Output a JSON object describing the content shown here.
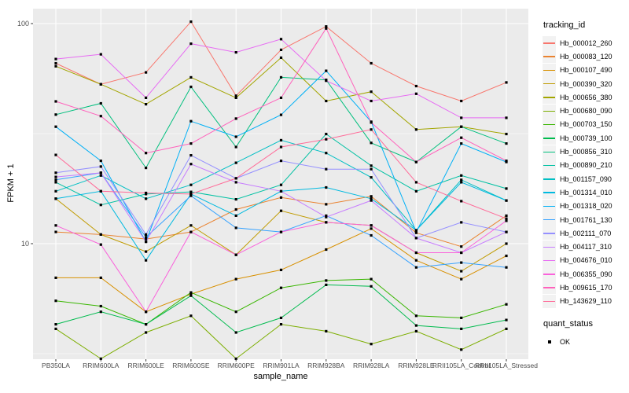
{
  "chart_data": {
    "type": "line",
    "title": "",
    "xlabel": "sample_name",
    "ylabel": "FPKM + 1",
    "y_scale": "log10",
    "y_ticks": [
      10,
      100
    ],
    "y_minor_ticks": [
      3.162,
      31.62
    ],
    "grid": true,
    "legend_position": "right",
    "panel_bg": "#EBEBEB",
    "grid_color": "#FFFFFF",
    "tick_label_color": "#4D4D4D",
    "axis_title_color": "#000000",
    "point": {
      "shape": "square",
      "color": "#000000",
      "size": 3.2
    },
    "legend_title": "tracking_id",
    "shape_legend": {
      "title": "quant_status",
      "items": [
        {
          "label": "OK"
        }
      ]
    },
    "categories": [
      "PB350LA",
      "RRIM600LA",
      "RRIM600LE",
      "RRIM600SE",
      "RRIM600PE",
      "RRIM901LA",
      "RRIM928BA",
      "RRIM928LA",
      "RRIM928LE",
      "RRII105LA_Control",
      "RRII105LA_Stressed"
    ],
    "series": [
      {
        "name": "Hb_000012_260",
        "color": "#F8766D",
        "values": [
          66,
          53,
          60,
          102,
          47,
          76,
          97,
          66,
          52,
          44.5,
          54
        ]
      },
      {
        "name": "Hb_000083_120",
        "color": "#EA8331",
        "values": [
          11.3,
          11.0,
          10.5,
          11.3,
          14.3,
          16.2,
          15.1,
          16.4,
          11.2,
          9.7,
          13.4
        ]
      },
      {
        "name": "Hb_000107_490",
        "color": "#D89000",
        "values": [
          7.0,
          7.0,
          4.9,
          5.9,
          6.9,
          7.6,
          9.4,
          11.7,
          8.4,
          6.9,
          8.8
        ]
      },
      {
        "name": "Hb_000390_320",
        "color": "#C09B00",
        "values": [
          16.0,
          11.0,
          9.2,
          12.1,
          8.9,
          14.1,
          12.5,
          12.1,
          9.1,
          7.5,
          10.0
        ]
      },
      {
        "name": "Hb_000656_380",
        "color": "#A3A500",
        "values": [
          64,
          53,
          43,
          57,
          46,
          70,
          44.5,
          49,
          33,
          34,
          31.5
        ]
      },
      {
        "name": "Hb_000680_090",
        "color": "#7CAE00",
        "values": [
          4.1,
          3.0,
          3.95,
          4.7,
          3.0,
          4.3,
          4.0,
          3.5,
          4.0,
          3.3,
          4.1
        ]
      },
      {
        "name": "Hb_000703_150",
        "color": "#39B600",
        "values": [
          5.5,
          5.2,
          4.3,
          6.0,
          4.9,
          6.3,
          6.8,
          6.9,
          4.7,
          4.6,
          5.3
        ]
      },
      {
        "name": "Hb_000739_100",
        "color": "#00BB4E",
        "values": [
          4.3,
          4.9,
          4.3,
          5.8,
          3.95,
          4.6,
          6.5,
          6.4,
          4.25,
          4.1,
          4.5
        ]
      },
      {
        "name": "Hb_000856_310",
        "color": "#00BF7D",
        "values": [
          38.6,
          43.4,
          22.1,
          51.6,
          27.5,
          57,
          55.5,
          28.7,
          23.5,
          34,
          28.5
        ]
      },
      {
        "name": "Hb_000890_210",
        "color": "#00C1A3",
        "values": [
          19.0,
          15.0,
          16.8,
          17.2,
          15.9,
          18.5,
          31.5,
          22.6,
          17.3,
          20.4,
          17.8
        ]
      },
      {
        "name": "Hb_001157_090",
        "color": "#00BFC4",
        "values": [
          17.3,
          20.4,
          16.0,
          18.5,
          23.3,
          29.5,
          25.8,
          20.0,
          11.5,
          19.5,
          15.7
        ]
      },
      {
        "name": "Hb_001314_010",
        "color": "#00BAE0",
        "values": [
          16.0,
          17.3,
          8.4,
          16.8,
          13.4,
          17.3,
          18.0,
          16.0,
          11.5,
          19.0,
          15.7
        ]
      },
      {
        "name": "Hb_001318_020",
        "color": "#00B0F6",
        "values": [
          34,
          23.8,
          10.2,
          36,
          30.6,
          38.5,
          61,
          35.8,
          11.3,
          28.5,
          23.5
        ]
      },
      {
        "name": "Hb_001761_130",
        "color": "#35A2FF",
        "values": [
          19.5,
          21.0,
          10.7,
          16.5,
          11.8,
          11.3,
          13.4,
          10.9,
          7.8,
          8.2,
          7.8
        ]
      },
      {
        "name": "Hb_002111_070",
        "color": "#9590FF",
        "values": [
          21.0,
          22.4,
          11.0,
          25.2,
          19.8,
          23.8,
          21.8,
          21.8,
          10.6,
          12.5,
          11.3
        ]
      },
      {
        "name": "Hb_004117_310",
        "color": "#C77CFF",
        "values": [
          20.1,
          21.0,
          10.2,
          23.0,
          19.0,
          17.3,
          13.2,
          15.7,
          10.6,
          9.1,
          11.3
        ]
      },
      {
        "name": "Hb_004676_010",
        "color": "#E76BF3",
        "values": [
          69,
          72.5,
          46,
          81,
          74,
          85,
          55,
          44.5,
          48,
          37.3,
          37.3
        ]
      },
      {
        "name": "Hb_006355_090",
        "color": "#FA62DB",
        "values": [
          12.1,
          9.9,
          4.9,
          11.3,
          8.9,
          11.3,
          12.5,
          12.1,
          9.1,
          9.1,
          12.7
        ]
      },
      {
        "name": "Hb_009615_170",
        "color": "#FF62BC",
        "values": [
          44.3,
          38,
          25.8,
          28.5,
          37,
          46,
          95,
          35.5,
          23.5,
          30.3,
          23.8
        ]
      },
      {
        "name": "Hb_143629_110",
        "color": "#FF6A98",
        "values": [
          25.3,
          17.3,
          17.0,
          16.8,
          19.8,
          27.5,
          29.8,
          33,
          19,
          15.6,
          13.0
        ]
      }
    ]
  }
}
